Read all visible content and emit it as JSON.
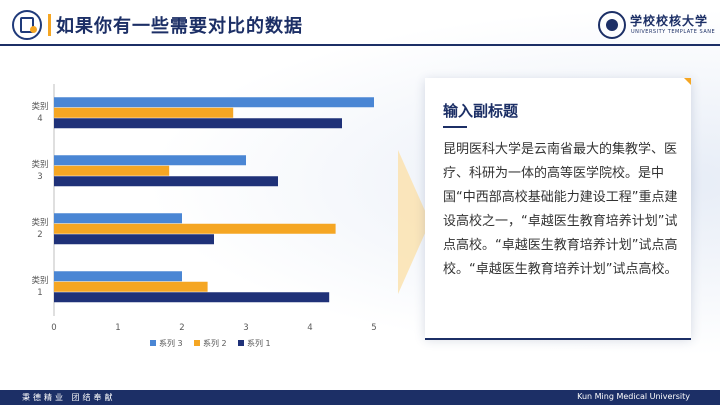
{
  "header": {
    "title": "如果你有一些需要对比的数据",
    "university_name": "学校校核大学",
    "university_sub": "UNIVERSITY   TEMPLATE   SANE"
  },
  "card": {
    "title": "输入副标题",
    "body": "昆明医科大学是云南省最大的集教学、医疗、科研为一体的高等医学院校。是中国“中西部高校基础能力建设工程”重点建设高校之一，“卓越医生教育培养计划”试点高校。“卓越医生教育培养计划”试点高校。“卓越医生教育培养计划”试点高校。"
  },
  "footer": {
    "left": "秉德精业  团结奉献",
    "right": "Kun Ming Medical University"
  },
  "colors": {
    "navy": "#1c2f66",
    "accent": "#f5a623",
    "series3": "#4a86d4",
    "series2": "#f5a623",
    "series1": "#1f3178"
  },
  "chart_data": {
    "type": "bar",
    "orientation": "horizontal",
    "categories": [
      "类别\n1",
      "类别\n2",
      "类别\n3",
      "类别\n4"
    ],
    "series": [
      {
        "name": "系列 3",
        "values": [
          2,
          2,
          3,
          5
        ],
        "color": "#4a86d4"
      },
      {
        "name": "系列 2",
        "values": [
          2.4,
          4.4,
          1.8,
          2.8
        ],
        "color": "#f5a623"
      },
      {
        "name": "系列 1",
        "values": [
          4.3,
          2.5,
          3.5,
          4.5
        ],
        "color": "#1f3178"
      }
    ],
    "xlim": [
      0,
      5
    ],
    "xticks": [
      "0",
      "1",
      "2",
      "3",
      "4",
      "5"
    ],
    "grid": false,
    "legend_position": "bottom"
  }
}
